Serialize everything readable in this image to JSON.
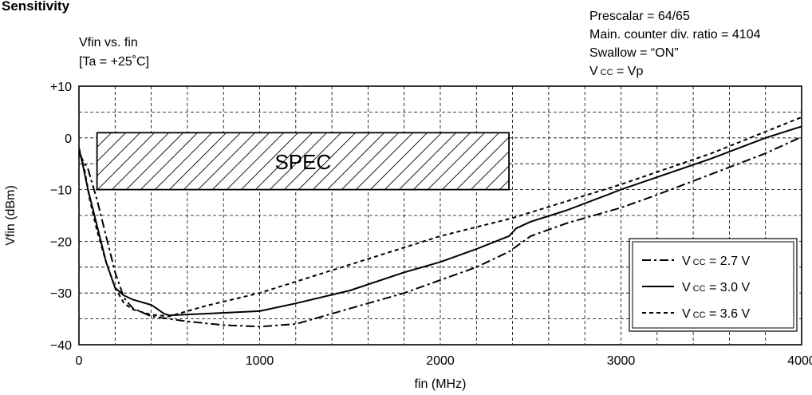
{
  "header": {
    "title": "Sensitivity",
    "subtitle": "Vfin vs. fin",
    "condition": "[Ta = +25˚C]",
    "notes": [
      "Prescalar = 64/65",
      "Main. counter div. ratio = 4104",
      "Swallow = “ON”"
    ],
    "vcc_note": {
      "v": "V",
      "sub": "CC",
      "rest": " = Vp"
    }
  },
  "spec_label": "SPEC",
  "chart_data": {
    "type": "line",
    "xlabel": "fin (MHz)",
    "ylabel": "Vfin (dBm)",
    "xlim": [
      0,
      4000
    ],
    "ylim": [
      -40,
      10
    ],
    "x_ticks": [
      "0",
      "1000",
      "2000",
      "3000",
      "4000"
    ],
    "y_ticks": [
      "+10",
      "0",
      "−10",
      "−20",
      "−30",
      "−40"
    ],
    "grid": true,
    "legend_position": "bottom-right",
    "spec_region": {
      "x": [
        100,
        2380
      ],
      "y": [
        -10,
        1
      ]
    },
    "series": [
      {
        "name": "V CC = 2.7 V",
        "label_v": "V",
        "label_sub": "CC",
        "label_rest": " = 2.7 V",
        "style": "dashdot",
        "points": [
          [
            0,
            -3
          ],
          [
            50,
            -6
          ],
          [
            100,
            -12
          ],
          [
            150,
            -19
          ],
          [
            200,
            -26
          ],
          [
            250,
            -31
          ],
          [
            300,
            -33
          ],
          [
            400,
            -34.5
          ],
          [
            500,
            -35
          ],
          [
            600,
            -35.5
          ],
          [
            800,
            -36.2
          ],
          [
            1000,
            -36.5
          ],
          [
            1200,
            -36
          ],
          [
            1500,
            -33
          ],
          [
            1800,
            -30
          ],
          [
            2000,
            -27.5
          ],
          [
            2200,
            -25
          ],
          [
            2380,
            -22
          ],
          [
            2500,
            -19
          ],
          [
            2700,
            -16.5
          ],
          [
            3000,
            -13.5
          ],
          [
            3200,
            -11
          ],
          [
            3500,
            -7
          ],
          [
            3800,
            -3
          ],
          [
            4000,
            0.2
          ]
        ]
      },
      {
        "name": "V CC = 3.0 V",
        "label_v": "V",
        "label_sub": "CC",
        "label_rest": " = 3.0 V",
        "style": "solid",
        "points": [
          [
            0,
            -2
          ],
          [
            20,
            -5
          ],
          [
            50,
            -10
          ],
          [
            100,
            -17
          ],
          [
            150,
            -24
          ],
          [
            200,
            -29
          ],
          [
            250,
            -30.5
          ],
          [
            300,
            -31.3
          ],
          [
            400,
            -32.3
          ],
          [
            430,
            -33
          ],
          [
            470,
            -34
          ],
          [
            500,
            -34.3
          ],
          [
            700,
            -34
          ],
          [
            1000,
            -33.5
          ],
          [
            1200,
            -32
          ],
          [
            1500,
            -29.5
          ],
          [
            1800,
            -26
          ],
          [
            2000,
            -24
          ],
          [
            2200,
            -21.5
          ],
          [
            2380,
            -19
          ],
          [
            2420,
            -17.5
          ],
          [
            2500,
            -16.2
          ],
          [
            2700,
            -14
          ],
          [
            3000,
            -10
          ],
          [
            3500,
            -4
          ],
          [
            3800,
            0
          ],
          [
            4000,
            2.2
          ]
        ]
      },
      {
        "name": "V CC = 3.6 V",
        "label_v": "V",
        "label_sub": "CC",
        "label_rest": " = 3.6 V",
        "style": "dashed",
        "points": [
          [
            0,
            -2
          ],
          [
            30,
            -6
          ],
          [
            60,
            -12
          ],
          [
            100,
            -18
          ],
          [
            150,
            -24
          ],
          [
            200,
            -29
          ],
          [
            250,
            -32
          ],
          [
            300,
            -33.2
          ],
          [
            400,
            -34.2
          ],
          [
            500,
            -34.5
          ],
          [
            700,
            -32.5
          ],
          [
            1000,
            -30
          ],
          [
            1500,
            -24.5
          ],
          [
            2000,
            -19
          ],
          [
            2400,
            -15.5
          ],
          [
            3000,
            -9
          ],
          [
            3500,
            -3
          ],
          [
            4000,
            4
          ]
        ]
      }
    ]
  }
}
